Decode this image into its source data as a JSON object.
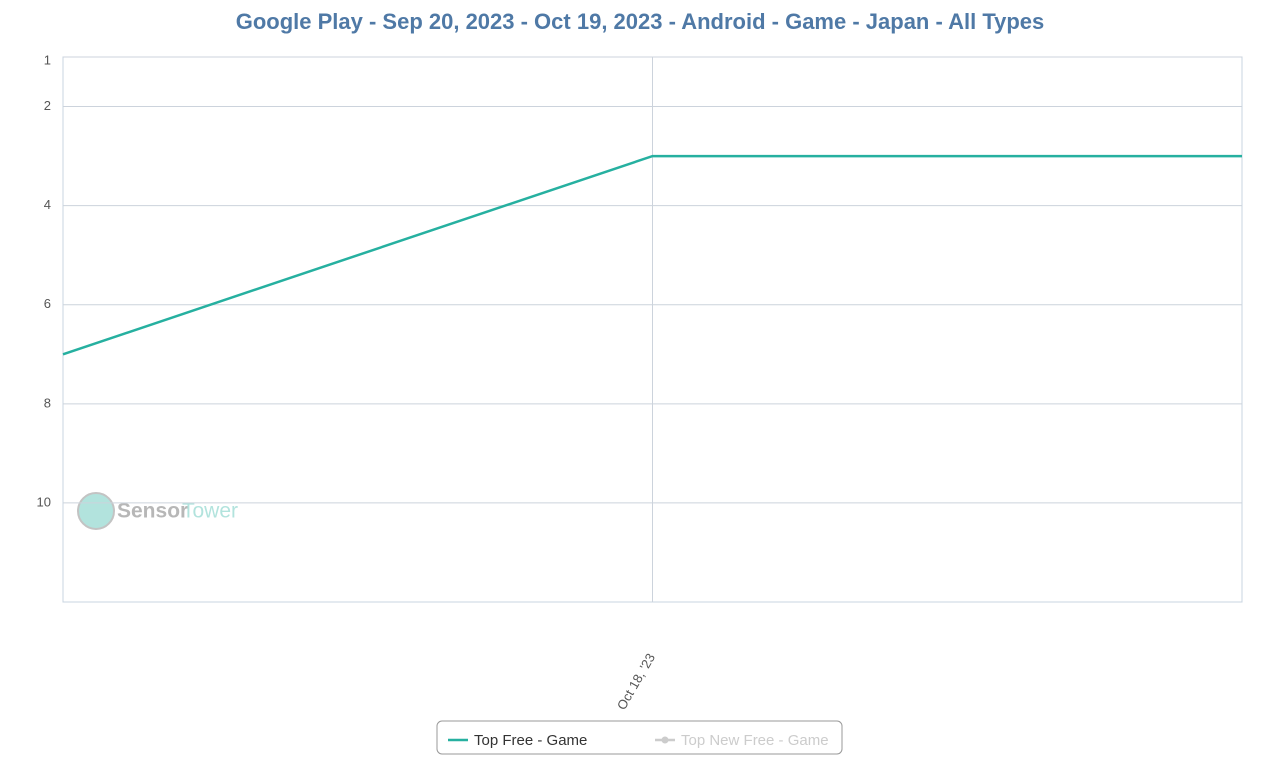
{
  "chart_data": {
    "type": "line",
    "title": "Google Play - Sep 20, 2023 - Oct 19, 2023 - Android - Game - Japan - All Types",
    "categories": [
      null,
      "Oct 18, '23",
      null
    ],
    "series": [
      {
        "name": "Top Free - Game",
        "color": "#26b0a0",
        "values": [
          7,
          3,
          3
        ]
      },
      {
        "name": "Top New Free - Game",
        "color": "#cccccc",
        "values": [
          null,
          null,
          null
        ],
        "hidden": true
      }
    ],
    "ylim": [
      1,
      12
    ],
    "yticks": [
      1,
      2,
      4,
      6,
      8,
      10
    ],
    "y_inverted": true,
    "grid": true,
    "legend": "bottom",
    "watermark": [
      "Sensor",
      "Tower"
    ]
  }
}
